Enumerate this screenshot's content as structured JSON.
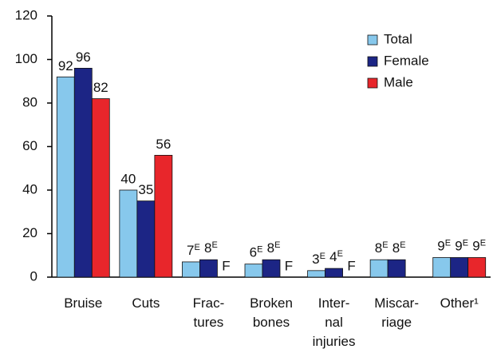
{
  "chart_data": {
    "type": "bar",
    "categories": [
      "Bruise",
      "Cuts",
      "Frac-\ntures",
      "Broken\nbones",
      "Inter-\nnal\ninjuries",
      "Miscar-\nriage",
      "Other¹"
    ],
    "series": [
      {
        "name": "Total",
        "color": "#87c8ec",
        "values": [
          92,
          40,
          7,
          6,
          3,
          8,
          9
        ],
        "value_labels": [
          "92",
          "40",
          "7E",
          "6E",
          "3E",
          "8E",
          "9E"
        ]
      },
      {
        "name": "Female",
        "color": "#1c2585",
        "values": [
          96,
          35,
          8,
          8,
          4,
          8,
          9
        ],
        "value_labels": [
          "96",
          "35",
          "8E",
          "8E",
          "4E",
          "8E",
          "9E"
        ]
      },
      {
        "name": "Male",
        "color": "#e8262b",
        "values": [
          82,
          56,
          null,
          null,
          null,
          null,
          9
        ],
        "value_labels": [
          "82",
          "56",
          "F",
          "F",
          "F",
          null,
          "9E"
        ]
      }
    ],
    "ylim": [
      0,
      120
    ],
    "yticks": [
      0,
      20,
      40,
      60,
      80,
      100,
      120
    ],
    "grid": false,
    "legend": "upper right"
  }
}
